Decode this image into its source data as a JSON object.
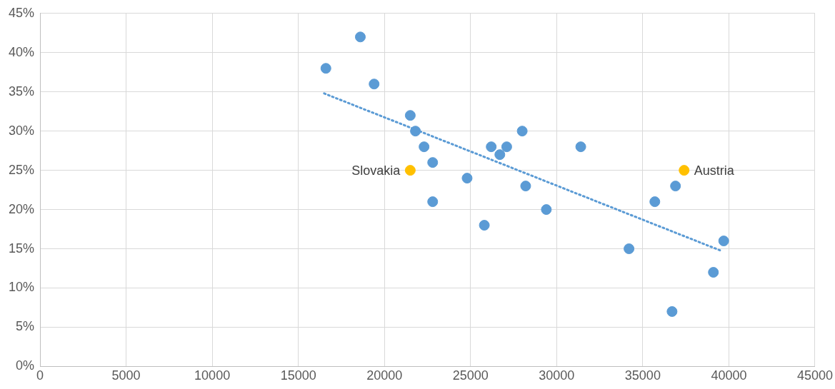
{
  "chart_data": {
    "type": "scatter",
    "xlim": [
      0,
      45000
    ],
    "xticks": [
      0,
      5000,
      10000,
      15000,
      20000,
      25000,
      30000,
      35000,
      40000,
      45000
    ],
    "ylim": [
      0,
      45
    ],
    "yticks": [
      {
        "value": 0,
        "label": "0%"
      },
      {
        "value": 5,
        "label": "5%"
      },
      {
        "value": 10,
        "label": "10%"
      },
      {
        "value": 15,
        "label": "15%"
      },
      {
        "value": 20,
        "label": "20%"
      },
      {
        "value": 25,
        "label": "25%"
      },
      {
        "value": 30,
        "label": "30%"
      },
      {
        "value": 35,
        "label": "35%"
      },
      {
        "value": 40,
        "label": "40%"
      },
      {
        "value": 45,
        "label": "45%"
      }
    ],
    "grid": true,
    "legend": false,
    "marker": "circle",
    "series": [
      {
        "color": "#5b9bd5",
        "x": [
          16600,
          18600,
          19400,
          21500,
          21800,
          22300,
          22800,
          22800,
          24800,
          25800,
          26200,
          26700,
          27100,
          28000,
          28200,
          29400,
          31400,
          34200,
          35700,
          36700,
          36900,
          39100,
          39700
        ],
        "values": [
          38,
          42,
          36,
          32,
          30,
          28,
          26,
          21,
          24,
          18,
          28,
          27,
          28,
          30,
          23,
          20,
          28,
          15,
          21,
          7,
          23,
          12,
          16
        ]
      },
      {
        "color": "#ffc000",
        "x": [
          21500,
          37400
        ],
        "values": [
          25,
          25
        ]
      },
      {
        "type": "line",
        "color": "#5b9bd5",
        "line_style": "dotted",
        "marker": "none",
        "x": [
          16500,
          39600
        ],
        "values": [
          34.8,
          14.7
        ]
      }
    ],
    "annotations": [
      {
        "text": "Slovakia",
        "x": 21500,
        "y": 25
      },
      {
        "text": "Austria",
        "x": 37400,
        "y": 25
      }
    ]
  }
}
